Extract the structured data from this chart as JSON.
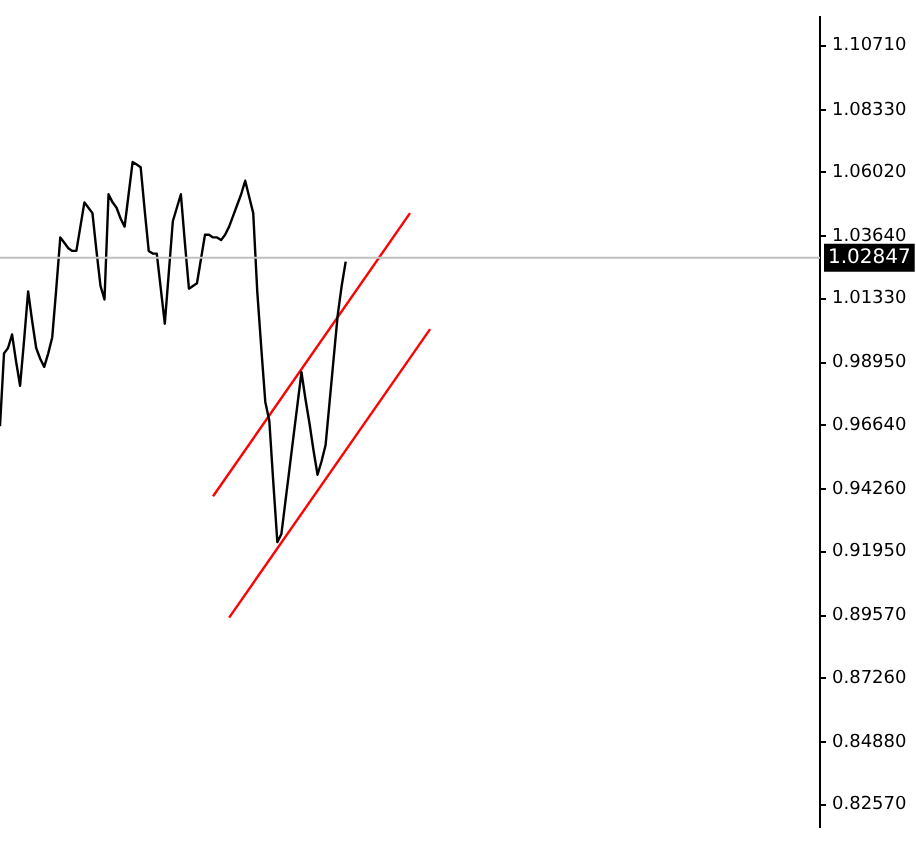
{
  "chart_data": {
    "type": "line",
    "ylim": [
      0.8173,
      1.1178
    ],
    "tick_labels": "y",
    "grid": false,
    "legend": false,
    "marker": "none",
    "line_style": "solid",
    "categories": [
      null,
      null,
      null,
      null,
      null,
      null,
      null,
      null,
      null,
      null,
      null,
      null,
      null,
      null,
      null,
      null,
      null,
      null,
      null,
      null,
      null,
      null,
      null,
      null,
      null,
      null,
      null,
      null,
      null,
      null,
      null,
      null,
      null,
      null,
      null,
      null,
      null,
      null,
      null,
      null,
      null,
      null,
      null,
      null,
      null,
      null,
      null,
      null,
      null,
      null,
      null,
      null,
      null,
      null,
      null,
      null,
      null,
      null,
      null,
      null,
      null,
      null,
      null,
      null,
      null,
      null,
      null,
      null,
      null,
      null,
      null,
      null,
      null,
      null,
      null,
      null,
      null,
      null,
      null,
      null,
      null,
      null,
      null,
      null,
      null,
      null,
      null,
      null,
      null,
      null,
      null,
      null,
      null,
      null,
      null,
      null,
      null,
      null,
      null,
      null,
      null,
      null,
      null,
      null,
      null,
      null,
      null,
      null,
      null,
      null,
      null,
      null,
      null,
      null,
      null,
      null,
      null,
      null,
      null,
      null,
      null,
      null,
      null,
      null,
      null,
      null,
      null,
      null,
      null,
      null,
      null,
      null,
      null,
      null,
      null,
      null,
      null,
      null,
      null,
      null,
      null,
      null,
      null,
      null,
      null,
      null,
      null,
      null,
      null,
      null,
      null,
      null,
      null,
      null,
      null,
      null,
      null,
      null,
      null,
      null,
      null,
      null,
      null,
      null,
      null,
      null,
      null,
      null,
      null,
      null,
      null,
      null,
      null,
      null,
      null,
      null,
      null,
      null,
      null,
      null,
      null,
      null,
      null,
      null,
      null,
      null,
      null,
      null,
      null,
      null,
      null,
      null,
      null,
      null,
      null,
      null,
      null,
      null,
      null,
      null,
      null,
      null,
      null,
      null,
      null
    ],
    "yticks": [
      {
        "value": 1.1071,
        "label": "1.10710"
      },
      {
        "value": 1.0833,
        "label": "1.08330"
      },
      {
        "value": 1.0602,
        "label": "1.06020"
      },
      {
        "value": 1.0364,
        "label": "1.03640"
      },
      {
        "value": 1.0133,
        "label": "1.01330"
      },
      {
        "value": 0.9895,
        "label": "0.98950"
      },
      {
        "value": 0.9664,
        "label": "0.96640"
      },
      {
        "value": 0.9426,
        "label": "0.94260"
      },
      {
        "value": 0.9195,
        "label": "0.91950"
      },
      {
        "value": 0.8957,
        "label": "0.89570"
      },
      {
        "value": 0.8726,
        "label": "0.87260"
      },
      {
        "value": 0.8488,
        "label": "0.84880"
      },
      {
        "value": 0.8257,
        "label": "0.82570"
      }
    ],
    "series": [
      {
        "color": "#000000",
        "values": [
          0.966,
          0.993,
          0.995,
          1.0,
          0.99,
          0.981,
          0.998,
          1.016,
          1.005,
          0.995,
          0.991,
          0.988,
          0.993,
          0.999,
          1.017,
          1.036,
          1.034,
          1.032,
          1.031,
          1.031,
          1.04,
          1.049,
          1.047,
          1.045,
          1.031,
          1.018,
          1.013,
          1.052,
          1.049,
          1.047,
          1.043,
          1.04,
          1.052,
          1.064,
          1.063,
          1.062,
          1.046,
          1.031,
          1.03,
          1.03,
          1.017,
          1.004,
          1.023,
          1.042,
          1.047,
          1.052,
          1.034,
          1.017,
          1.018,
          1.019,
          1.028,
          1.037,
          1.037,
          1.036,
          1.036,
          1.035,
          1.037,
          1.04,
          1.044,
          1.048,
          1.052,
          1.057,
          1.051,
          1.045,
          1.016,
          0.995,
          0.975,
          0.968,
          0.945,
          0.923,
          0.926,
          0.938,
          0.95,
          0.962,
          0.974,
          0.986,
          0.976,
          0.967,
          0.957,
          0.948,
          0.953,
          0.959,
          0.975,
          0.991,
          1.007,
          1.018,
          1.027,
          null,
          null,
          null,
          null,
          null,
          null,
          null,
          null,
          null,
          null,
          null,
          null,
          null,
          null,
          null,
          null,
          null,
          null,
          null,
          null,
          null,
          null,
          null,
          null,
          null,
          null,
          null,
          null,
          null,
          null,
          null,
          null,
          null,
          null,
          null,
          null,
          null,
          null,
          null,
          null,
          null,
          null,
          null,
          null,
          null,
          null,
          null,
          null,
          null,
          null,
          null,
          null,
          null,
          null,
          null,
          null,
          null,
          null,
          null,
          null,
          null,
          null,
          null,
          null,
          null,
          null,
          null,
          null,
          null,
          null,
          null,
          null,
          null,
          null,
          null,
          null,
          null,
          null,
          null,
          null,
          null,
          null,
          null,
          null,
          null,
          null,
          null,
          null,
          null,
          null,
          null,
          null,
          null,
          null,
          null,
          null,
          null,
          null,
          null,
          null,
          null,
          null,
          null,
          null,
          null,
          null,
          null,
          null,
          null,
          null,
          null,
          null,
          null,
          null,
          null,
          null,
          null,
          null
        ]
      },
      {
        "type": "line",
        "color": "#ff0000",
        "values": [
          null,
          null,
          null,
          null,
          null,
          null,
          null,
          null,
          null,
          null,
          null,
          null,
          null,
          null,
          null,
          null,
          null,
          null,
          null,
          null,
          null,
          null,
          null,
          null,
          null,
          null,
          null,
          null,
          null,
          null,
          null,
          null,
          null,
          null,
          null,
          null,
          null,
          null,
          null,
          null,
          null,
          null,
          null,
          null,
          null,
          null,
          null,
          null,
          null,
          null,
          null,
          null,
          null,
          0.94,
          null,
          null,
          null,
          null,
          null,
          null,
          null,
          null,
          null,
          null,
          null,
          null,
          null,
          null,
          null,
          null,
          null,
          null,
          null,
          null,
          null,
          null,
          null,
          null,
          null,
          null,
          null,
          null,
          null,
          null,
          null,
          null,
          null,
          null,
          null,
          null,
          null,
          null,
          null,
          null,
          null,
          null,
          null,
          null,
          null,
          null,
          null,
          null,
          1.045,
          null,
          null,
          null,
          null,
          null,
          null,
          null,
          null,
          null,
          null,
          null,
          null,
          null,
          null,
          null,
          null,
          null,
          null,
          null,
          null,
          null,
          null,
          null,
          null,
          null,
          null,
          null,
          null,
          null,
          null,
          null,
          null,
          null,
          null,
          null,
          null,
          null,
          null,
          null,
          null,
          null,
          null,
          null,
          null,
          null,
          null,
          null,
          null,
          null,
          null,
          null,
          null,
          null,
          null,
          null,
          null,
          null,
          null,
          null,
          null,
          null,
          null,
          null,
          null,
          null,
          null,
          null,
          null,
          null,
          null,
          null,
          null,
          null,
          null,
          null,
          null,
          null,
          null,
          null,
          null,
          null,
          null,
          null,
          null,
          null,
          null,
          null,
          null,
          null,
          null,
          null,
          null,
          null,
          null,
          null,
          null,
          null,
          null,
          null,
          null,
          null,
          null
        ]
      },
      {
        "type": "line",
        "color": "#ff0000",
        "values": [
          null,
          null,
          null,
          null,
          null,
          null,
          null,
          null,
          null,
          null,
          null,
          null,
          null,
          null,
          null,
          null,
          null,
          null,
          null,
          null,
          null,
          null,
          null,
          null,
          null,
          null,
          null,
          null,
          null,
          null,
          null,
          null,
          null,
          null,
          null,
          null,
          null,
          null,
          null,
          null,
          null,
          null,
          null,
          null,
          null,
          null,
          null,
          null,
          null,
          null,
          null,
          null,
          null,
          null,
          null,
          null,
          null,
          0.895,
          null,
          null,
          null,
          null,
          null,
          null,
          null,
          null,
          null,
          null,
          null,
          null,
          null,
          null,
          null,
          null,
          null,
          null,
          null,
          null,
          null,
          null,
          null,
          null,
          null,
          null,
          null,
          null,
          null,
          null,
          null,
          null,
          null,
          null,
          null,
          null,
          null,
          null,
          null,
          null,
          null,
          null,
          null,
          null,
          null,
          null,
          null,
          null,
          null,
          1.002,
          null,
          null,
          null,
          null,
          null,
          null,
          null,
          null,
          null,
          null,
          null,
          null,
          null,
          null,
          null,
          null,
          null,
          null,
          null,
          null,
          null,
          null,
          null,
          null,
          null,
          null,
          null,
          null,
          null,
          null,
          null,
          null,
          null,
          null,
          null,
          null,
          null,
          null,
          null,
          null,
          null,
          null,
          null,
          null,
          null,
          null,
          null,
          null,
          null,
          null,
          null,
          null,
          null,
          null,
          null,
          null,
          null,
          null,
          null,
          null,
          null,
          null,
          null,
          null,
          null,
          null,
          null,
          null,
          null,
          null,
          null,
          null,
          null,
          null,
          null,
          null,
          null,
          null,
          null,
          null,
          null,
          null,
          null,
          null,
          null,
          null,
          null,
          null,
          null,
          null,
          null,
          null,
          null,
          null,
          null,
          null,
          null
        ]
      }
    ],
    "ref_lines": [
      {
        "axis": "y",
        "value": 1.02847,
        "label": "1.02847",
        "color": "#c0c0c0"
      }
    ]
  }
}
